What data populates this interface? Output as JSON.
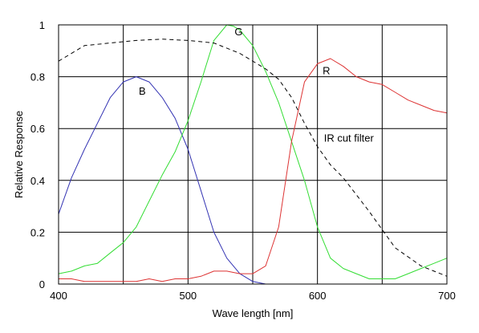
{
  "chart_data": {
    "type": "line",
    "xlabel": "Wave length [nm]",
    "ylabel": "Relative Response",
    "xlim": [
      400,
      700
    ],
    "ylim": [
      0,
      1
    ],
    "x_ticks": [
      400,
      500,
      600,
      700
    ],
    "y_ticks": [
      0,
      0.2,
      0.4,
      0.6,
      0.8,
      1
    ],
    "x_tick_labels": [
      "400",
      "500",
      "600",
      "700"
    ],
    "y_tick_labels": [
      "0",
      "0.2",
      "0.4",
      "0.6",
      "0.8",
      "1"
    ],
    "x_grid_step": 50,
    "y_grid_step": 0.2,
    "grid": true,
    "series": [
      {
        "name": "B",
        "color": "#3333b3",
        "dash": "solid",
        "x": [
          400,
          410,
          420,
          430,
          440,
          450,
          460,
          470,
          480,
          490,
          500,
          510,
          520,
          530,
          540,
          550,
          560
        ],
        "y": [
          0.27,
          0.41,
          0.52,
          0.62,
          0.72,
          0.78,
          0.8,
          0.78,
          0.72,
          0.64,
          0.52,
          0.36,
          0.2,
          0.1,
          0.04,
          0.01,
          0.0
        ]
      },
      {
        "name": "G",
        "color": "#33dd33",
        "dash": "solid",
        "x": [
          400,
          410,
          420,
          430,
          440,
          450,
          460,
          470,
          480,
          490,
          500,
          510,
          520,
          530,
          535,
          540,
          550,
          560,
          570,
          580,
          590,
          600,
          610,
          620,
          630,
          640,
          650,
          660,
          670,
          680,
          690,
          700
        ],
        "y": [
          0.04,
          0.05,
          0.07,
          0.08,
          0.12,
          0.16,
          0.22,
          0.32,
          0.42,
          0.51,
          0.63,
          0.78,
          0.94,
          1.0,
          0.995,
          0.98,
          0.92,
          0.82,
          0.7,
          0.55,
          0.4,
          0.22,
          0.1,
          0.06,
          0.04,
          0.02,
          0.02,
          0.02,
          0.04,
          0.06,
          0.08,
          0.1
        ]
      },
      {
        "name": "R",
        "color": "#dd3333",
        "dash": "solid",
        "x": [
          400,
          410,
          420,
          430,
          440,
          450,
          460,
          470,
          480,
          490,
          500,
          510,
          520,
          530,
          540,
          550,
          560,
          570,
          580,
          590,
          600,
          610,
          620,
          630,
          640,
          650,
          660,
          670,
          680,
          690,
          700
        ],
        "y": [
          0.02,
          0.02,
          0.01,
          0.01,
          0.01,
          0.01,
          0.01,
          0.02,
          0.01,
          0.02,
          0.02,
          0.03,
          0.05,
          0.05,
          0.04,
          0.04,
          0.07,
          0.22,
          0.55,
          0.78,
          0.85,
          0.87,
          0.84,
          0.8,
          0.78,
          0.77,
          0.74,
          0.71,
          0.69,
          0.67,
          0.66
        ]
      },
      {
        "name": "IR cut filter",
        "color": "#000000",
        "dash": "dashed",
        "x": [
          400,
          420,
          440,
          460,
          480,
          500,
          520,
          540,
          560,
          570,
          580,
          590,
          600,
          610,
          620,
          640,
          660,
          680,
          700
        ],
        "y": [
          0.86,
          0.92,
          0.93,
          0.94,
          0.945,
          0.94,
          0.93,
          0.89,
          0.83,
          0.79,
          0.72,
          0.62,
          0.53,
          0.46,
          0.41,
          0.28,
          0.14,
          0.07,
          0.03
        ]
      }
    ],
    "annotations": [
      {
        "text": "B",
        "x": 462,
        "y": 0.73
      },
      {
        "text": "G",
        "x": 536,
        "y": 0.96
      },
      {
        "text": "R",
        "x": 604,
        "y": 0.81
      },
      {
        "text": "IR cut filter",
        "x": 605,
        "y": 0.55
      }
    ]
  }
}
